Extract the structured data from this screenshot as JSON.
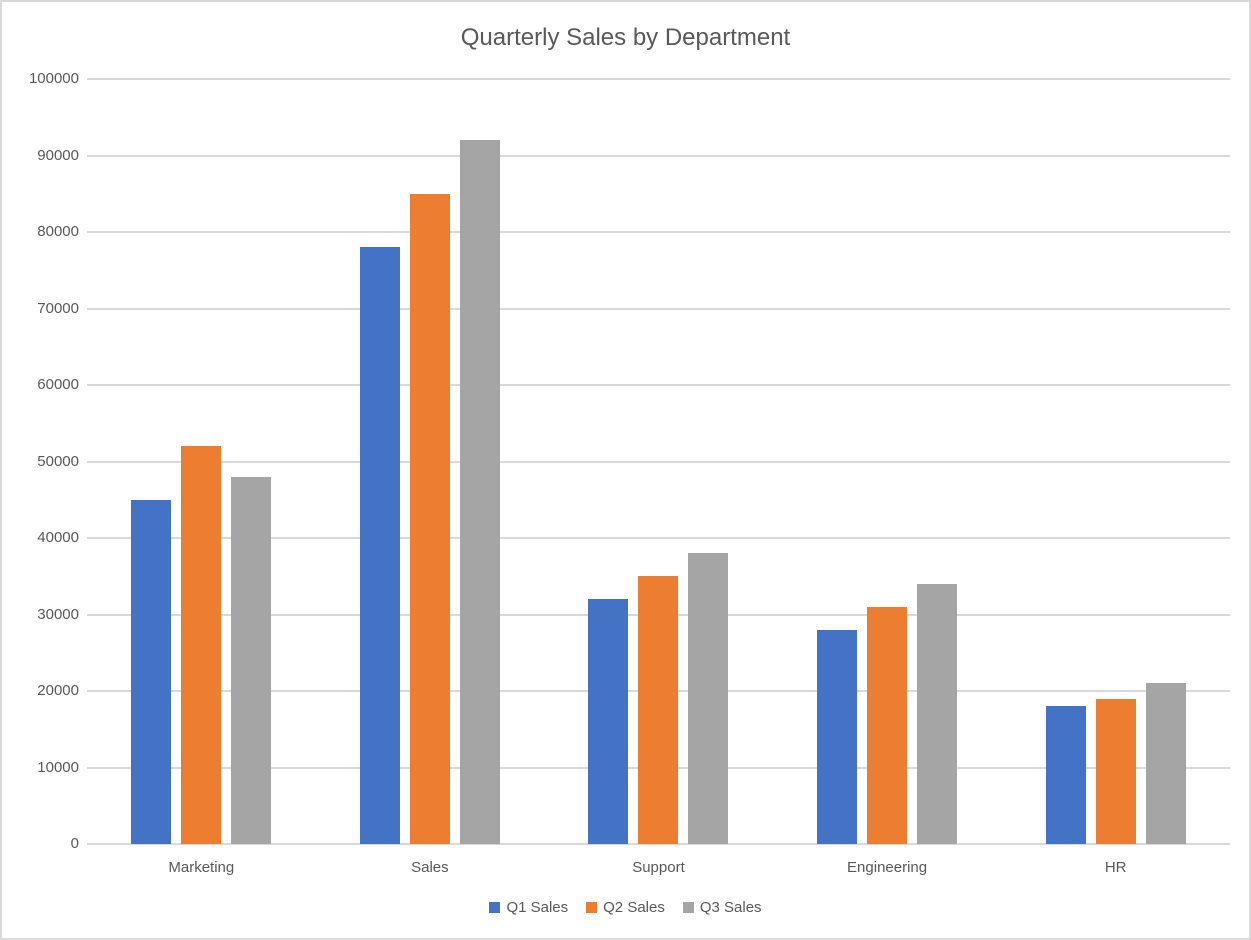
{
  "colors": {
    "background": "#FFFFFF",
    "frame_border": "#D9D9D9",
    "gridline": "#D9D9D9",
    "axis_line": "#D9D9D9",
    "text": "#595959",
    "series_blue": "#4472C4",
    "series_orange": "#ED7D31",
    "series_gray": "#A5A5A5"
  },
  "chart_data": {
    "type": "bar",
    "title": "Quarterly Sales by Department",
    "xlabel": "",
    "ylabel": "",
    "categories": [
      "Marketing",
      "Sales",
      "Support",
      "Engineering",
      "HR"
    ],
    "series": [
      {
        "name": "Q1 Sales",
        "color": "#4472C4",
        "values": [
          45000,
          78000,
          32000,
          28000,
          18000
        ]
      },
      {
        "name": "Q2 Sales",
        "color": "#ED7D31",
        "values": [
          52000,
          85000,
          35000,
          31000,
          19000
        ]
      },
      {
        "name": "Q3 Sales",
        "color": "#A5A5A5",
        "values": [
          48000,
          92000,
          38000,
          34000,
          21000
        ]
      }
    ],
    "ylim": [
      0,
      100000
    ],
    "ytick_step": 10000,
    "ytick_labels": [
      "0",
      "10000",
      "20000",
      "30000",
      "40000",
      "50000",
      "60000",
      "70000",
      "80000",
      "90000",
      "100000"
    ],
    "grid": true,
    "legend_position": "bottom"
  }
}
